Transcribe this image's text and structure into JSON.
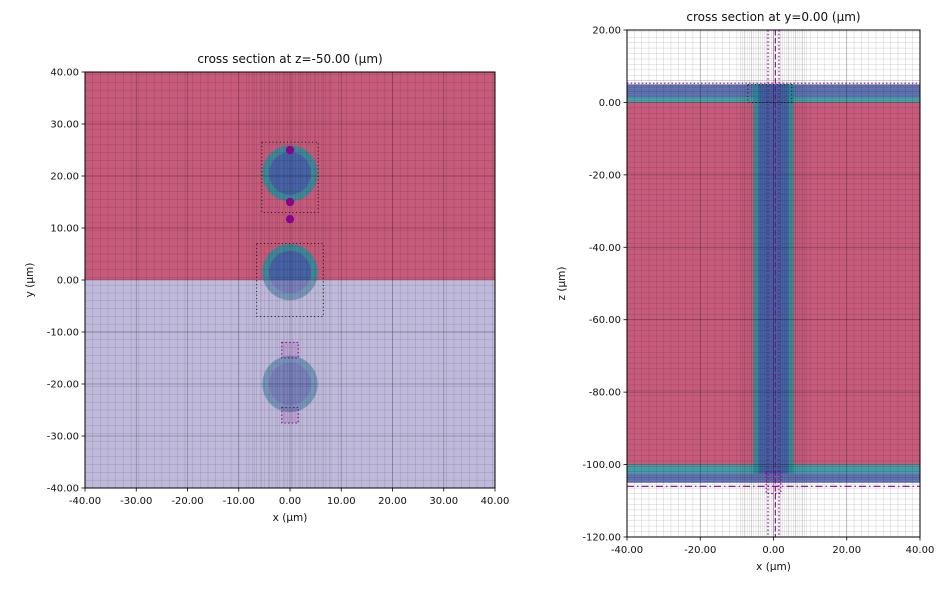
{
  "figure": {
    "background": "#ffffff"
  },
  "colors": {
    "medium_pink": "#c65b7c",
    "cladding_teal": "rgba(40,145,158,0.85)",
    "core_slate": "rgba(73,93,168,0.85)",
    "medium_lavender": "rgba(152,144,197,0.62)",
    "monitor_purple": "#8b008b",
    "structure_outline": "#000000"
  },
  "chart_data": [
    {
      "type": "cross_section",
      "title": "cross section at z=-50.00 (μm)",
      "xlabel": "x (μm)",
      "ylabel": "y (μm)",
      "xlim": [
        -40,
        40
      ],
      "ylim": [
        -40,
        40
      ],
      "grid": "mesh-overlay",
      "legend": "none",
      "xticks": {
        "values": [
          -40,
          -30,
          -20,
          -10,
          0,
          10,
          20,
          30,
          40
        ],
        "labels": [
          "-40.00",
          "-30.00",
          "-20.00",
          "-10.00",
          "0.00",
          "10.00",
          "20.00",
          "30.00",
          "40.00"
        ]
      },
      "yticks": {
        "values": [
          -40,
          -30,
          -20,
          -10,
          0,
          10,
          20,
          30,
          40
        ],
        "labels": [
          "-40.00",
          "-30.00",
          "-20.00",
          "-10.00",
          "0.00",
          "10.00",
          "20.00",
          "30.00",
          "40.00"
        ]
      },
      "mesh": {
        "x": {
          "step": 1.5,
          "fine": [
            {
              "min": -8,
              "max": 8,
              "step": 0.75
            }
          ]
        },
        "y": {
          "step": 1.5,
          "fine": []
        }
      },
      "layers": [
        {
          "name": "upper-medium-region",
          "shape": "rect",
          "x": [
            -40,
            40
          ],
          "y": [
            0,
            40
          ],
          "fill": "#c65b7c"
        },
        {
          "name": "fiber-top-cladding",
          "shape": "circle",
          "cx": 0,
          "cy": 20.5,
          "r": 5.4,
          "fill": "rgba(40,145,158,0.85)"
        },
        {
          "name": "fiber-top-core",
          "shape": "circle",
          "cx": 0,
          "cy": 20.5,
          "r": 4.1,
          "fill": "rgba(73,93,168,0.85)"
        },
        {
          "name": "fiber-mid-cladding",
          "shape": "circle",
          "cx": 0,
          "cy": 1.5,
          "r": 5.4,
          "fill": "rgba(40,145,158,0.85)"
        },
        {
          "name": "fiber-mid-core",
          "shape": "circle",
          "cx": 0,
          "cy": 1.5,
          "r": 4.1,
          "fill": "rgba(73,93,168,0.85)"
        },
        {
          "name": "fiber-bottom-cladding",
          "shape": "circle",
          "cx": 0,
          "cy": -20,
          "r": 5.4,
          "fill": "rgba(40,145,158,0.85)"
        },
        {
          "name": "fiber-bottom-core",
          "shape": "circle",
          "cx": 0,
          "cy": -20,
          "r": 4.1,
          "fill": "rgba(73,93,168,0.85)"
        },
        {
          "name": "lower-medium-region",
          "shape": "rect",
          "x": [
            -40,
            40
          ],
          "y": [
            -40,
            0
          ],
          "fill": "rgba(152,144,197,0.62)"
        }
      ],
      "overlays": [
        {
          "name": "structure-bounds-top",
          "shape": "rect-outline",
          "x": [
            -5.5,
            5.5
          ],
          "y": [
            13,
            26.5
          ],
          "stroke": "#000000",
          "dash": "1 2.6",
          "width": 0.9
        },
        {
          "name": "structure-bounds-mid",
          "shape": "rect-outline",
          "x": [
            -6.5,
            6.5
          ],
          "y": [
            -7,
            7
          ],
          "stroke": "#000000",
          "dash": "1 2.6",
          "width": 0.9
        },
        {
          "name": "monitor-box-upper",
          "shape": "rect-outline",
          "x": [
            -1.6,
            1.6
          ],
          "y": [
            -15,
            -12
          ],
          "stroke": "#8b008b",
          "dash": "1.5 2.2",
          "width": 1.1,
          "fill": "rgba(139,0,139,0.12)"
        },
        {
          "name": "monitor-box-lower",
          "shape": "rect-outline",
          "x": [
            -1.6,
            1.6
          ],
          "y": [
            -27.5,
            -24.5
          ],
          "stroke": "#8b008b",
          "dash": "1.5 2.2",
          "width": 1.1,
          "fill": "rgba(139,0,139,0.12)"
        },
        {
          "name": "monitor-point-top",
          "shape": "point",
          "x": 0,
          "y": 25,
          "r": 0.8,
          "fill": "#8b008b"
        },
        {
          "name": "monitor-point-mid",
          "shape": "point",
          "x": 0,
          "y": 15,
          "r": 0.8,
          "fill": "#8b008b"
        },
        {
          "name": "monitor-point-bottom",
          "shape": "point",
          "x": 0,
          "y": 11.7,
          "r": 0.8,
          "fill": "#8b008b"
        }
      ]
    },
    {
      "type": "cross_section",
      "title": "cross section at y=0.00 (μm)",
      "xlabel": "x (μm)",
      "ylabel": "z (μm)",
      "xlim": [
        -40,
        40
      ],
      "ylim": [
        -120,
        20
      ],
      "grid": "mesh-overlay",
      "legend": "none",
      "xticks": {
        "values": [
          -40,
          -20,
          0,
          20,
          40
        ],
        "labels": [
          "-40.00",
          "-20.00",
          "0.00",
          "20.00",
          "40.00"
        ]
      },
      "yticks": {
        "values": [
          20,
          0,
          -20,
          -40,
          -60,
          -80,
          -100,
          -120
        ],
        "labels": [
          "20.00",
          "0.00",
          "-20.00",
          "-40.00",
          "-60.00",
          "-80.00",
          "-100.00",
          "-120.00"
        ]
      },
      "mesh": {
        "x": {
          "step": 2,
          "fine": [
            {
              "min": -9,
              "max": 9,
              "step": 0.6
            }
          ]
        },
        "y": {
          "step": 1.5,
          "fine": [
            {
              "min": 0,
              "max": 6,
              "step": 0.6
            },
            {
              "min": -106,
              "max": -99.5,
              "step": 0.6
            }
          ]
        }
      },
      "layers": [
        {
          "name": "bulk-medium-region",
          "shape": "rect",
          "x": [
            -40,
            40
          ],
          "y": [
            -100,
            0
          ],
          "fill": "#c65b7c"
        },
        {
          "name": "top-slab-core",
          "shape": "rect",
          "x": [
            -40,
            40
          ],
          "y": [
            1.5,
            5
          ],
          "fill": "rgba(73,93,168,0.85)"
        },
        {
          "name": "top-slab-cladding",
          "shape": "rect",
          "x": [
            -40,
            40
          ],
          "y": [
            0,
            1.5
          ],
          "fill": "rgba(40,145,158,0.85)"
        },
        {
          "name": "bottom-slab-cladding",
          "shape": "rect",
          "x": [
            -40,
            40
          ],
          "y": [
            -102.5,
            -100
          ],
          "fill": "rgba(40,145,158,0.85)"
        },
        {
          "name": "bottom-slab-core",
          "shape": "rect",
          "x": [
            -40,
            40
          ],
          "y": [
            -105,
            -102.5
          ],
          "fill": "rgba(73,93,168,0.85)"
        },
        {
          "name": "fiber-column-cladding",
          "shape": "rect",
          "x": [
            -5.5,
            5.5
          ],
          "y": [
            -102.5,
            5
          ],
          "fill": "rgba(40,145,158,0.85)"
        },
        {
          "name": "fiber-column-core",
          "shape": "rect",
          "x": [
            -4,
            4
          ],
          "y": [
            -102.5,
            5
          ],
          "fill": "rgba(73,93,168,0.85)"
        }
      ],
      "overlays": [
        {
          "name": "structure-bounds-column",
          "shape": "rect-outline",
          "x": [
            -7,
            5
          ],
          "y": [
            0,
            5
          ],
          "stroke": "#000000",
          "dash": "1 2.6",
          "width": 0.9
        },
        {
          "name": "monitor-line-top",
          "shape": "hline",
          "y": 5.3,
          "color": "#8b008b",
          "dash": "1.5 2.2",
          "width": 1.1
        },
        {
          "name": "monitor-line-x-left",
          "shape": "vline",
          "x": -1.5,
          "color": "#8b008b",
          "dash": "1.5 2.2",
          "width": 1.1
        },
        {
          "name": "monitor-line-x-right",
          "shape": "vline",
          "x": 1.5,
          "color": "#8b008b",
          "dash": "1.5 2.2",
          "width": 1.1
        },
        {
          "name": "source-line",
          "shape": "vline",
          "x": 0.5,
          "color": "#8b008b",
          "dash": "5.5 2.5",
          "width": 1.1
        },
        {
          "name": "monitor-line-bottom",
          "shape": "hline",
          "y": -106,
          "color": "#8b008b",
          "dash": "7 3 1.5 3",
          "width": 1.1
        },
        {
          "name": "monitor-box-bottom",
          "shape": "rect-outline",
          "x": [
            -2,
            2
          ],
          "y": [
            -108,
            -102
          ],
          "stroke": "#8b008b",
          "dash": "1.5 2.2",
          "width": 1.1,
          "fill": "rgba(139,0,139,0.08)"
        }
      ]
    }
  ]
}
